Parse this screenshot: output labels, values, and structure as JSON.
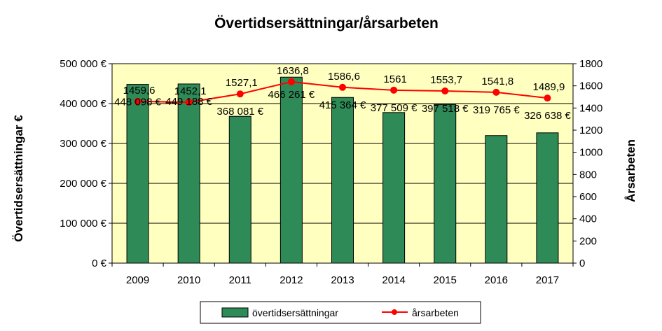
{
  "chart_data": {
    "type": "bar+line",
    "title": "Övertidsersättningar/årsarbeten",
    "categories": [
      "2009",
      "2010",
      "2011",
      "2012",
      "2013",
      "2014",
      "2015",
      "2016",
      "2017"
    ],
    "series": [
      {
        "name": "övertidsersättningar",
        "type": "bar",
        "axis": "left",
        "color": "#2e8b57",
        "values": [
          448098,
          449188,
          368081,
          466261,
          415364,
          377509,
          397518,
          319765,
          326638
        ],
        "labels": [
          "448 098 €",
          "449 188 €",
          "368 081 €",
          "466 261 €",
          "415 364 €",
          "377 509 €",
          "397 518 €",
          "319 765 €",
          "326 638 €"
        ]
      },
      {
        "name": "årsarbeten",
        "type": "line",
        "axis": "right",
        "color": "#ff0000",
        "values": [
          1459.6,
          1452.1,
          1527.1,
          1636.8,
          1586.6,
          1561,
          1553.7,
          1541.8,
          1489.9
        ],
        "labels": [
          "1459,6",
          "1452,1",
          "1527,1",
          "1636,8",
          "1586,6",
          "1561",
          "1553,7",
          "1541,8",
          "1489,9"
        ]
      }
    ],
    "y_left": {
      "label": "Övertidsersättningar €",
      "range": [
        0,
        500000
      ],
      "ticks": [
        0,
        100000,
        200000,
        300000,
        400000,
        500000
      ],
      "tick_labels": [
        "0 €",
        "100 000 €",
        "200 000 €",
        "300 000 €",
        "400 000 €",
        "500 000 €"
      ]
    },
    "y_right": {
      "label": "Årsarbeten",
      "range": [
        0,
        1800
      ],
      "ticks": [
        0,
        200,
        400,
        600,
        800,
        1000,
        1200,
        1400,
        1600,
        1800
      ],
      "tick_labels": [
        "0",
        "200",
        "400",
        "600",
        "800",
        "1000",
        "1200",
        "1400",
        "1600",
        "1800"
      ]
    },
    "plot_background": "#ffffc0",
    "grid": true,
    "legend": "bottom"
  }
}
